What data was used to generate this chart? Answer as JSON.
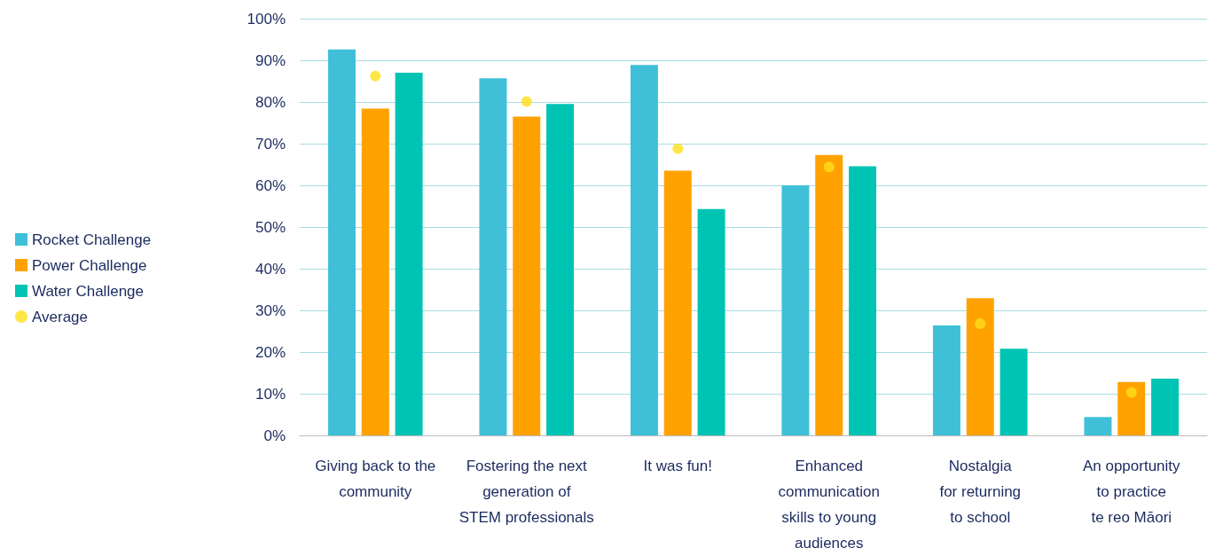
{
  "chart_data": {
    "type": "bar",
    "categories": [
      "Giving back to the\ncommunity",
      "Fostering the next\ngeneration of\nSTEM professionals",
      "It was fun!",
      "Enhanced\ncommunication\nskills to young\naudiences",
      "Nostalgia\nfor returning\nto school",
      "An opportunity\nto practice\nte reo Māori"
    ],
    "series": [
      {
        "name": "Rocket Challenge",
        "color": "#3fc0d8",
        "values": [
          92.6,
          85.7,
          88.9,
          60.0,
          26.4,
          4.4
        ]
      },
      {
        "name": "Power Challenge",
        "color": "#ffa200",
        "values": [
          78.4,
          76.5,
          63.5,
          67.3,
          32.9,
          12.8
        ]
      },
      {
        "name": "Water Challenge",
        "color": "#00c4b3",
        "values": [
          87.0,
          79.5,
          54.3,
          64.6,
          20.8,
          13.6
        ]
      },
      {
        "name": "Average",
        "color": "#ffe01a",
        "type": "scatter",
        "marker": "circle",
        "x": [
          "Giving back to the\ncommunity",
          "Fostering the next\ngeneration of\nSTEM professionals",
          "It was fun!",
          "Enhanced\ncommunication\nskills to young\naudiences",
          "Nostalgia\nfor returning\nto school",
          "An opportunity\nto practice\nte reo Māori"
        ],
        "values": [
          86.2,
          80.1,
          68.8,
          64.4,
          26.8,
          10.3
        ]
      }
    ],
    "ylim": [
      0,
      100
    ],
    "yticks": [
      {
        "value": 0,
        "label": "0%"
      },
      {
        "value": 10,
        "label": "10%"
      },
      {
        "value": 20,
        "label": "20%"
      },
      {
        "value": 30,
        "label": "30%"
      },
      {
        "value": 40,
        "label": "40%"
      },
      {
        "value": 50,
        "label": "50%"
      },
      {
        "value": 60,
        "label": "60%"
      },
      {
        "value": 70,
        "label": "70%"
      },
      {
        "value": 80,
        "label": "80%"
      },
      {
        "value": 90,
        "label": "90%"
      },
      {
        "value": 100,
        "label": "100%"
      }
    ],
    "grid": "y",
    "legend": "left"
  }
}
